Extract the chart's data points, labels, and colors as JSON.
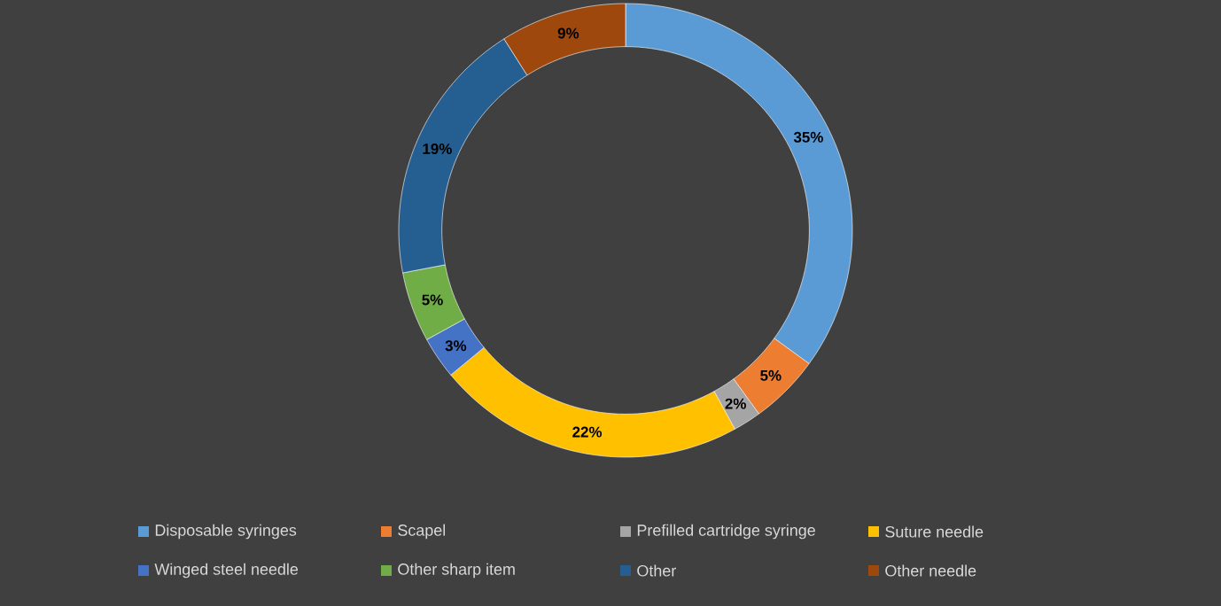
{
  "chart_data": {
    "type": "donut",
    "categories": [
      "Disposable syringes",
      "Scapel",
      "Prefilled cartridge syringe",
      "Suture needle",
      "Winged steel needle",
      "Other sharp item",
      "Other",
      "Other needle"
    ],
    "values": [
      35,
      5,
      2,
      22,
      3,
      5,
      19,
      9
    ],
    "value_labels": [
      "35%",
      "5%",
      "2%",
      "22%",
      "3%",
      "5%",
      "19%",
      "9%"
    ],
    "colors": [
      "#5b9bd5",
      "#ed7d31",
      "#a5a5a5",
      "#ffc000",
      "#4472c4",
      "#70ad47",
      "#255e91",
      "#9e480e"
    ],
    "legend": "bottom"
  }
}
